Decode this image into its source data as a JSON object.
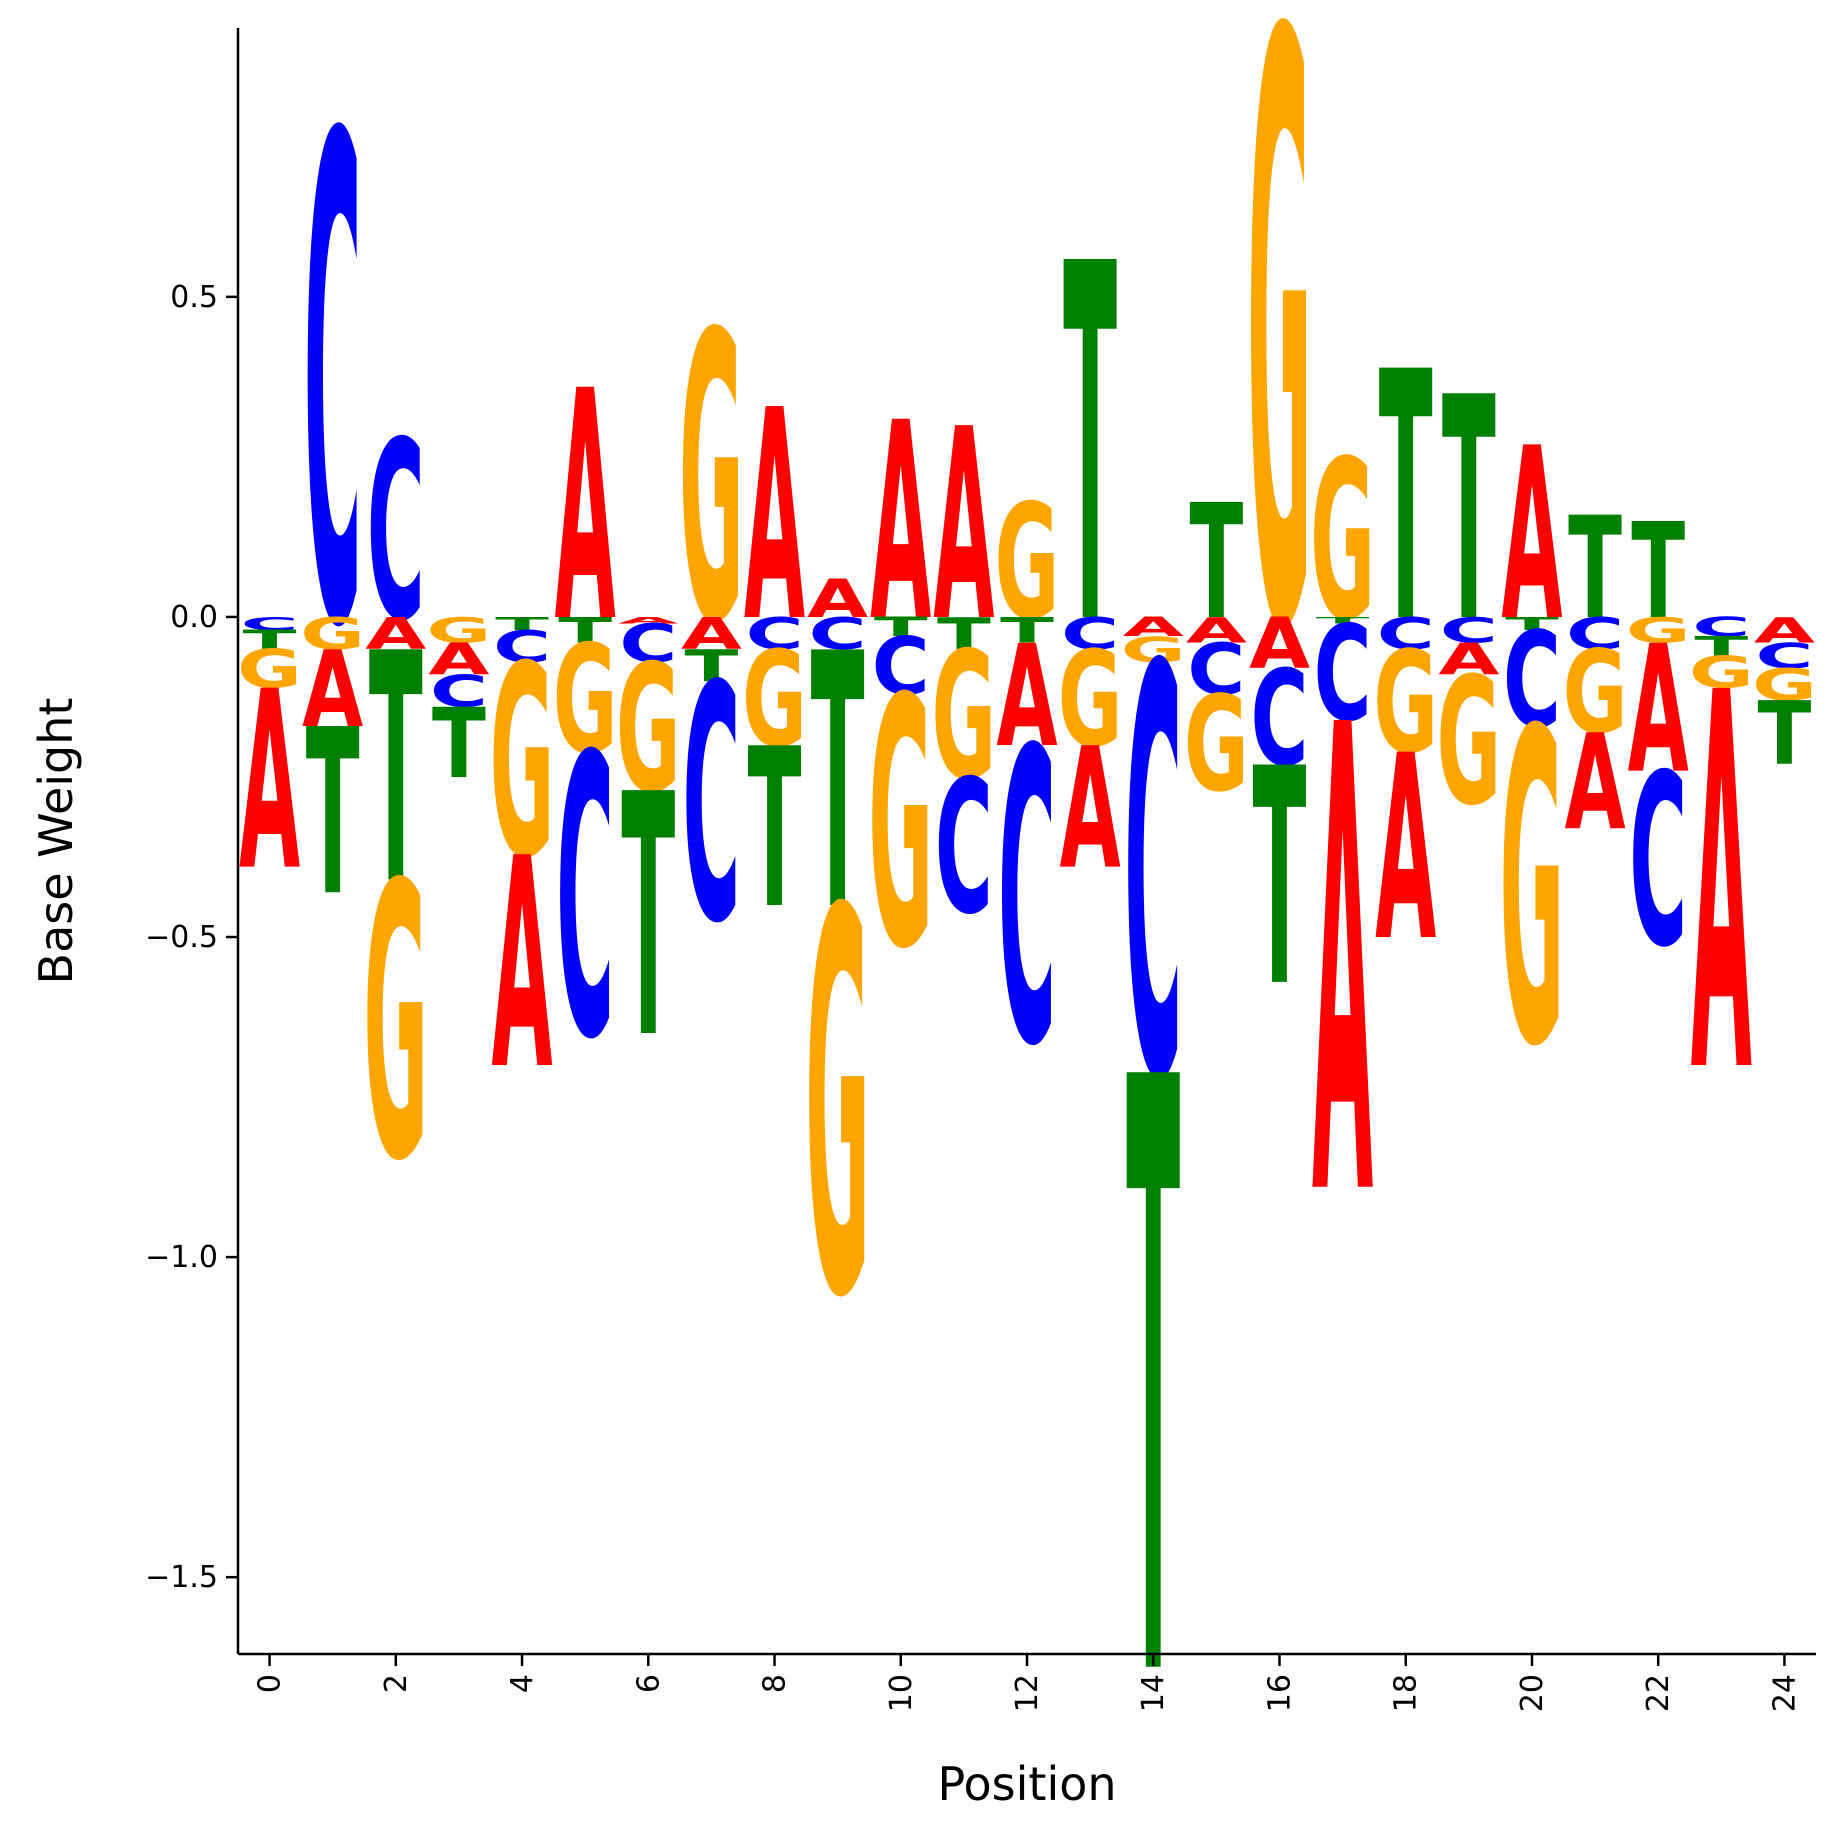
{
  "chart_data": {
    "type": "sequence-logo",
    "xlabel": "Position",
    "ylabel": "Base Weight",
    "xlim": [
      -0.5,
      24.5
    ],
    "ylim": [
      -1.62,
      0.92
    ],
    "x_ticks": [
      0,
      2,
      4,
      6,
      8,
      10,
      12,
      14,
      16,
      18,
      20,
      22,
      24
    ],
    "x_tick_labels": [
      "0",
      "2",
      "4",
      "6",
      "8",
      "10",
      "12",
      "14",
      "16",
      "18",
      "20",
      "22",
      "24"
    ],
    "y_ticks": [
      0.5,
      0.0,
      -0.5,
      -1.0,
      -1.5
    ],
    "y_tick_labels": [
      "0.5",
      "0.0",
      "−0.5",
      "−1.0",
      "−1.5"
    ],
    "colors": {
      "A": "#ff0000",
      "C": "#0000ff",
      "G": "#ffa500",
      "T": "#008000"
    },
    "positions": [
      {
        "x": 0,
        "A": -0.28,
        "C": -0.02,
        "G": -0.06,
        "T": -0.03
      },
      {
        "x": 1,
        "A": -0.12,
        "C": 0.76,
        "G": -0.05,
        "T": -0.26
      },
      {
        "x": 2,
        "A": -0.05,
        "C": 0.28,
        "G": -0.43,
        "T": -0.36
      },
      {
        "x": 3,
        "A": -0.05,
        "C": -0.05,
        "G": -0.04,
        "T": -0.11
      },
      {
        "x": 4,
        "A": -0.33,
        "C": -0.05,
        "G": -0.3,
        "T": -0.02
      },
      {
        "x": 5,
        "A": 0.36,
        "C": -0.44,
        "G": -0.17,
        "T": -0.04
      },
      {
        "x": 6,
        "A": -0.01,
        "C": -0.06,
        "G": -0.2,
        "T": -0.38
      },
      {
        "x": 7,
        "A": -0.05,
        "C": -0.37,
        "G": 0.45,
        "T": -0.05
      },
      {
        "x": 8,
        "A": 0.33,
        "C": -0.05,
        "G": -0.15,
        "T": -0.25
      },
      {
        "x": 9,
        "A": 0.06,
        "C": -0.05,
        "G": -0.6,
        "T": -0.4
      },
      {
        "x": 10,
        "A": 0.31,
        "C": -0.09,
        "G": -0.39,
        "T": -0.03
      },
      {
        "x": 11,
        "A": 0.3,
        "C": -0.21,
        "G": -0.2,
        "T": -0.05
      },
      {
        "x": 12,
        "A": -0.16,
        "C": -0.46,
        "G": 0.18,
        "T": -0.04
      },
      {
        "x": 13,
        "A": -0.19,
        "C": -0.05,
        "G": -0.15,
        "T": 0.56
      },
      {
        "x": 14,
        "A": -0.03,
        "C": -0.64,
        "G": -0.04,
        "T": -0.93
      },
      {
        "x": 15,
        "A": -0.04,
        "C": -0.08,
        "G": -0.15,
        "T": 0.18
      },
      {
        "x": 16,
        "A": -0.08,
        "C": -0.15,
        "G": 0.92,
        "T": -0.34
      },
      {
        "x": 17,
        "A": -0.73,
        "C": -0.15,
        "G": 0.25,
        "T": -0.01
      },
      {
        "x": 18,
        "A": -0.29,
        "C": -0.05,
        "G": -0.16,
        "T": 0.39
      },
      {
        "x": 19,
        "A": -0.05,
        "C": -0.04,
        "G": -0.2,
        "T": 0.35
      },
      {
        "x": 20,
        "A": 0.27,
        "C": -0.15,
        "G": -0.49,
        "T": -0.02
      },
      {
        "x": 21,
        "A": -0.15,
        "C": -0.05,
        "G": -0.13,
        "T": 0.16
      },
      {
        "x": 22,
        "A": -0.2,
        "C": -0.27,
        "G": -0.04,
        "T": 0.15
      },
      {
        "x": 23,
        "A": -0.59,
        "C": -0.03,
        "G": -0.05,
        "T": -0.03
      },
      {
        "x": 24,
        "A": -0.04,
        "C": -0.04,
        "G": -0.05,
        "T": -0.1
      }
    ]
  }
}
